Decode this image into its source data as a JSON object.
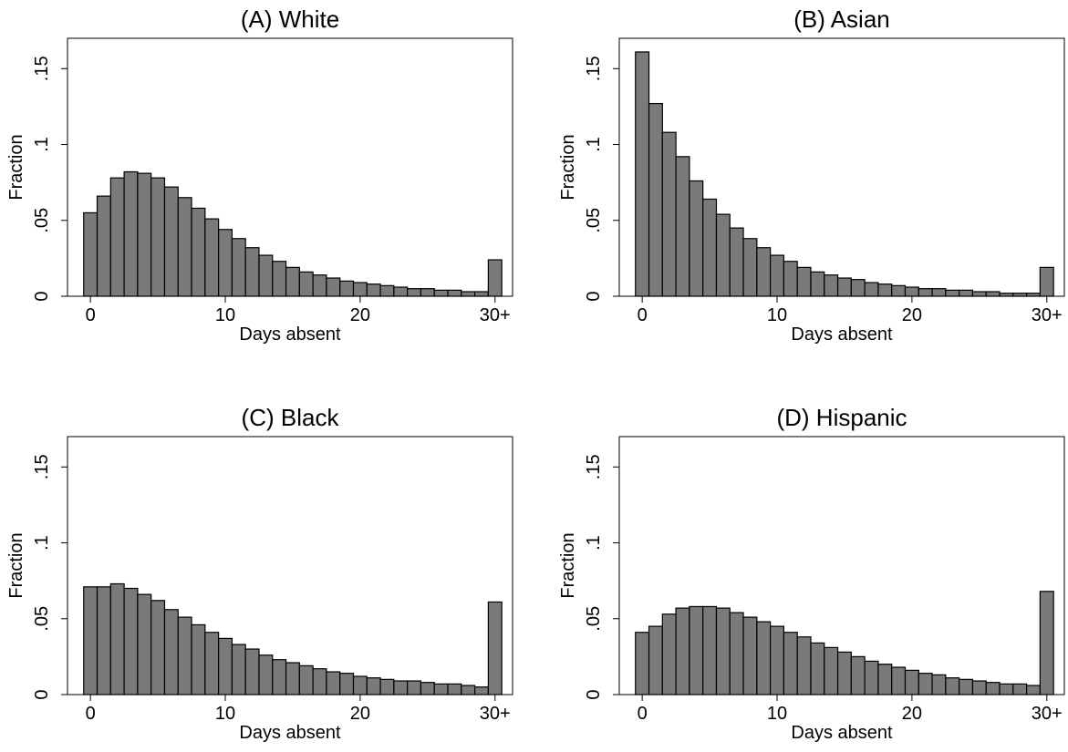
{
  "chart_data": [
    {
      "type": "bar",
      "title": "(A) White",
      "xlabel": "Days absent",
      "ylabel": "Fraction",
      "x": [
        0,
        1,
        2,
        3,
        4,
        5,
        6,
        7,
        8,
        9,
        10,
        11,
        12,
        13,
        14,
        15,
        16,
        17,
        18,
        19,
        20,
        21,
        22,
        23,
        24,
        25,
        26,
        27,
        28,
        29,
        30
      ],
      "values": [
        0.055,
        0.066,
        0.078,
        0.082,
        0.081,
        0.078,
        0.072,
        0.065,
        0.058,
        0.051,
        0.044,
        0.038,
        0.032,
        0.027,
        0.023,
        0.019,
        0.016,
        0.014,
        0.012,
        0.01,
        0.009,
        0.008,
        0.007,
        0.006,
        0.005,
        0.005,
        0.004,
        0.004,
        0.003,
        0.003,
        0.024
      ],
      "xticks": [
        {
          "value": 0,
          "label": "0"
        },
        {
          "value": 10,
          "label": "10"
        },
        {
          "value": 20,
          "label": "20"
        },
        {
          "value": 30,
          "label": "30+"
        }
      ],
      "yticks": [
        {
          "value": 0,
          "label": "0"
        },
        {
          "value": 0.05,
          "label": ".05"
        },
        {
          "value": 0.1,
          "label": ".1"
        },
        {
          "value": 0.15,
          "label": ".15"
        }
      ],
      "xlim": [
        -1.7,
        31.3
      ],
      "ylim": [
        0,
        0.17
      ],
      "bar_color": "#7a7a7a",
      "grid": false
    },
    {
      "type": "bar",
      "title": "(B) Asian",
      "xlabel": "Days absent",
      "ylabel": "Fraction",
      "x": [
        0,
        1,
        2,
        3,
        4,
        5,
        6,
        7,
        8,
        9,
        10,
        11,
        12,
        13,
        14,
        15,
        16,
        17,
        18,
        19,
        20,
        21,
        22,
        23,
        24,
        25,
        26,
        27,
        28,
        29,
        30
      ],
      "values": [
        0.161,
        0.127,
        0.108,
        0.092,
        0.076,
        0.064,
        0.054,
        0.045,
        0.038,
        0.032,
        0.027,
        0.023,
        0.019,
        0.016,
        0.014,
        0.012,
        0.011,
        0.009,
        0.008,
        0.007,
        0.006,
        0.005,
        0.005,
        0.004,
        0.004,
        0.003,
        0.003,
        0.002,
        0.002,
        0.002,
        0.019
      ],
      "xticks": [
        {
          "value": 0,
          "label": "0"
        },
        {
          "value": 10,
          "label": "10"
        },
        {
          "value": 20,
          "label": "20"
        },
        {
          "value": 30,
          "label": "30+"
        }
      ],
      "yticks": [
        {
          "value": 0,
          "label": "0"
        },
        {
          "value": 0.05,
          "label": ".05"
        },
        {
          "value": 0.1,
          "label": ".1"
        },
        {
          "value": 0.15,
          "label": ".15"
        }
      ],
      "xlim": [
        -1.7,
        31.3
      ],
      "ylim": [
        0,
        0.17
      ],
      "bar_color": "#7a7a7a",
      "grid": false
    },
    {
      "type": "bar",
      "title": "(C) Black",
      "xlabel": "Days absent",
      "ylabel": "Fraction",
      "x": [
        0,
        1,
        2,
        3,
        4,
        5,
        6,
        7,
        8,
        9,
        10,
        11,
        12,
        13,
        14,
        15,
        16,
        17,
        18,
        19,
        20,
        21,
        22,
        23,
        24,
        25,
        26,
        27,
        28,
        29,
        30
      ],
      "values": [
        0.071,
        0.071,
        0.073,
        0.07,
        0.066,
        0.062,
        0.056,
        0.051,
        0.046,
        0.041,
        0.037,
        0.033,
        0.03,
        0.026,
        0.023,
        0.021,
        0.019,
        0.017,
        0.015,
        0.014,
        0.012,
        0.011,
        0.01,
        0.009,
        0.009,
        0.008,
        0.007,
        0.007,
        0.006,
        0.005,
        0.061
      ],
      "xticks": [
        {
          "value": 0,
          "label": "0"
        },
        {
          "value": 10,
          "label": "10"
        },
        {
          "value": 20,
          "label": "20"
        },
        {
          "value": 30,
          "label": "30+"
        }
      ],
      "yticks": [
        {
          "value": 0,
          "label": "0"
        },
        {
          "value": 0.05,
          "label": ".05"
        },
        {
          "value": 0.1,
          "label": ".1"
        },
        {
          "value": 0.15,
          "label": ".15"
        }
      ],
      "xlim": [
        -1.7,
        31.3
      ],
      "ylim": [
        0,
        0.17
      ],
      "bar_color": "#7a7a7a",
      "grid": false
    },
    {
      "type": "bar",
      "title": "(D) Hispanic",
      "xlabel": "Days absent",
      "ylabel": "Fraction",
      "x": [
        0,
        1,
        2,
        3,
        4,
        5,
        6,
        7,
        8,
        9,
        10,
        11,
        12,
        13,
        14,
        15,
        16,
        17,
        18,
        19,
        20,
        21,
        22,
        23,
        24,
        25,
        26,
        27,
        28,
        29,
        30
      ],
      "values": [
        0.041,
        0.045,
        0.053,
        0.057,
        0.058,
        0.058,
        0.057,
        0.054,
        0.051,
        0.048,
        0.045,
        0.041,
        0.038,
        0.034,
        0.031,
        0.028,
        0.025,
        0.022,
        0.02,
        0.018,
        0.016,
        0.014,
        0.013,
        0.011,
        0.01,
        0.009,
        0.008,
        0.007,
        0.007,
        0.006,
        0.068
      ],
      "xticks": [
        {
          "value": 0,
          "label": "0"
        },
        {
          "value": 10,
          "label": "10"
        },
        {
          "value": 20,
          "label": "20"
        },
        {
          "value": 30,
          "label": "30+"
        }
      ],
      "yticks": [
        {
          "value": 0,
          "label": "0"
        },
        {
          "value": 0.05,
          "label": ".05"
        },
        {
          "value": 0.1,
          "label": ".1"
        },
        {
          "value": 0.15,
          "label": ".15"
        }
      ],
      "xlim": [
        -1.7,
        31.3
      ],
      "ylim": [
        0,
        0.17
      ],
      "bar_color": "#7a7a7a",
      "grid": false
    }
  ]
}
